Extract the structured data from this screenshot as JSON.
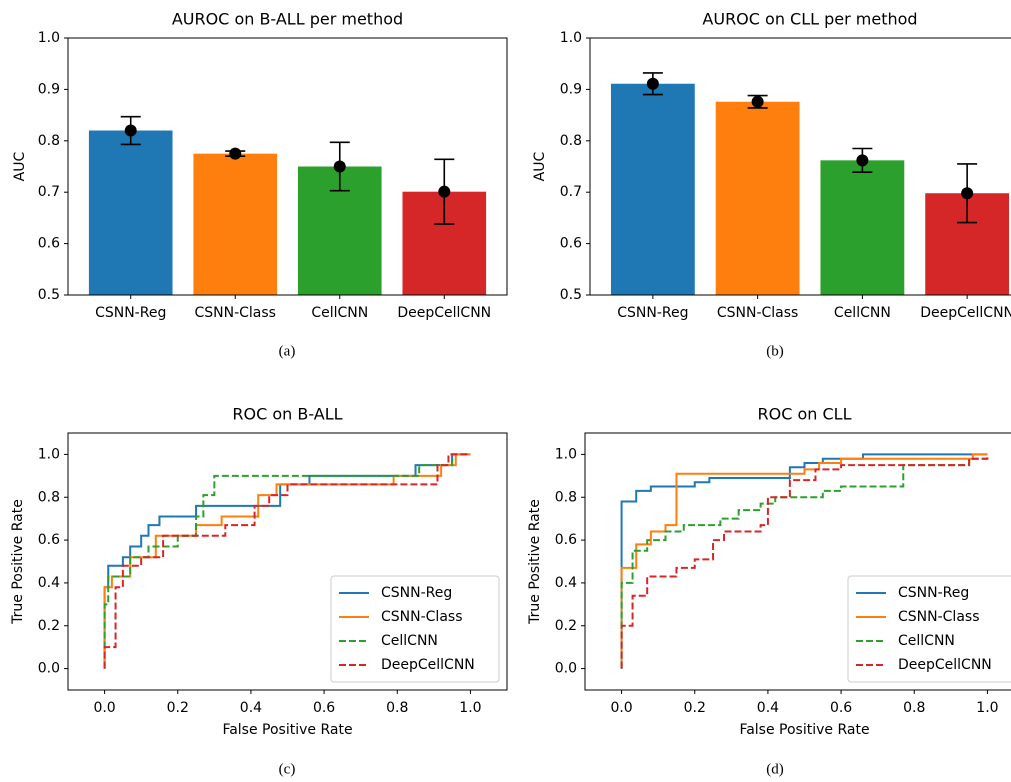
{
  "chart_data": [
    {
      "type": "bar",
      "title": "AUROC on B-ALL per method",
      "y_label": "AUC",
      "caption": "(a)",
      "categories": [
        "CSNN-Reg",
        "CSNN-Class",
        "CellCNN",
        "DeepCellCNN"
      ],
      "values": [
        0.82,
        0.775,
        0.75,
        0.701
      ],
      "errors": [
        0.027,
        0.005,
        0.047,
        0.063
      ],
      "colors": [
        "#1f77b4",
        "#ff7f0e",
        "#2ca02c",
        "#d62728"
      ],
      "ylim": [
        0.5,
        1.0
      ],
      "yticks": [
        0.5,
        0.6,
        0.7,
        0.8,
        0.9,
        {
          "value": 1.0,
          "label": "1.0"
        }
      ]
    },
    {
      "type": "bar",
      "title": "AUROC on CLL per method",
      "y_label": "AUC",
      "caption": "(b)",
      "categories": [
        "CSNN-Reg",
        "CSNN-Class",
        "CellCNN",
        "DeepCellCNN"
      ],
      "values": [
        0.911,
        0.876,
        0.762,
        0.698
      ],
      "errors": [
        0.021,
        0.012,
        0.023,
        0.057
      ],
      "colors": [
        "#1f77b4",
        "#ff7f0e",
        "#2ca02c",
        "#d62728"
      ],
      "ylim": [
        0.5,
        1.0
      ],
      "yticks": [
        0.5,
        0.6,
        0.7,
        0.8,
        0.9,
        {
          "value": 1.0,
          "label": "1.0"
        }
      ]
    },
    {
      "type": "line",
      "title": "ROC on B-ALL",
      "x_label": "False Positive Rate",
      "y_label": "True Positive Rate",
      "caption": "(c)",
      "legend": "lower right",
      "xlim": [
        -0.1,
        1.1
      ],
      "ylim": [
        -0.1,
        1.1
      ],
      "xticks": [
        {
          "value": 0.0,
          "label": "0.0"
        },
        0.2,
        0.4,
        0.6,
        0.8,
        {
          "value": 1.0,
          "label": "1.0"
        }
      ],
      "yticks": [
        {
          "value": 0.0,
          "label": "0.0"
        },
        0.2,
        0.4,
        0.6,
        0.8,
        {
          "value": 1.0,
          "label": "1.0"
        }
      ],
      "series": [
        {
          "name": "CSNN-Reg",
          "color": "#1f77b4",
          "linestyle": "solid",
          "x": [
            0,
            0,
            0.01,
            0.01,
            0.05,
            0.05,
            0.07,
            0.07,
            0.1,
            0.1,
            0.12,
            0.12,
            0.15,
            0.15,
            0.25,
            0.25,
            0.48,
            0.48,
            0.56,
            0.56,
            0.85,
            0.85,
            0.95,
            0.95,
            1
          ],
          "y": [
            0,
            0.38,
            0.38,
            0.48,
            0.48,
            0.52,
            0.52,
            0.57,
            0.57,
            0.62,
            0.62,
            0.67,
            0.67,
            0.71,
            0.71,
            0.76,
            0.76,
            0.86,
            0.86,
            0.9,
            0.9,
            0.95,
            0.95,
            1,
            1
          ]
        },
        {
          "name": "CSNN-Class",
          "color": "#ff7f0e",
          "linestyle": "solid",
          "x": [
            0,
            0,
            0.02,
            0.02,
            0.07,
            0.07,
            0.14,
            0.14,
            0.25,
            0.25,
            0.32,
            0.32,
            0.42,
            0.42,
            0.47,
            0.47,
            0.79,
            0.79,
            0.92,
            0.92,
            0.96,
            0.96,
            1
          ],
          "y": [
            0,
            0.38,
            0.38,
            0.43,
            0.43,
            0.52,
            0.52,
            0.62,
            0.62,
            0.67,
            0.67,
            0.71,
            0.71,
            0.81,
            0.81,
            0.86,
            0.86,
            0.9,
            0.9,
            0.95,
            0.95,
            1,
            1
          ]
        },
        {
          "name": "CellCNN",
          "color": "#2ca02c",
          "linestyle": "dashed",
          "x": [
            0,
            0,
            0.01,
            0.01,
            0.07,
            0.07,
            0.12,
            0.12,
            0.2,
            0.2,
            0.25,
            0.25,
            0.27,
            0.27,
            0.3,
            0.3,
            0.86,
            0.86,
            0.95,
            0.95,
            1
          ],
          "y": [
            0,
            0.3,
            0.3,
            0.43,
            0.43,
            0.52,
            0.52,
            0.57,
            0.57,
            0.62,
            0.62,
            0.71,
            0.71,
            0.81,
            0.81,
            0.9,
            0.9,
            0.95,
            0.95,
            1,
            1
          ]
        },
        {
          "name": "DeepCellCNN",
          "color": "#d62728",
          "linestyle": "dashed",
          "x": [
            0,
            0,
            0.03,
            0.03,
            0.05,
            0.05,
            0.1,
            0.1,
            0.16,
            0.16,
            0.33,
            0.33,
            0.41,
            0.41,
            0.45,
            0.45,
            0.5,
            0.5,
            0.91,
            0.91,
            0.94,
            0.94,
            1
          ],
          "y": [
            0,
            0.1,
            0.1,
            0.38,
            0.38,
            0.48,
            0.48,
            0.52,
            0.52,
            0.62,
            0.62,
            0.67,
            0.67,
            0.76,
            0.76,
            0.81,
            0.81,
            0.86,
            0.86,
            0.95,
            0.95,
            1,
            1
          ]
        }
      ]
    },
    {
      "type": "line",
      "title": "ROC on CLL",
      "x_label": "False Positive Rate",
      "y_label": "True Positive Rate",
      "caption": "(d)",
      "legend": "lower right",
      "xlim": [
        -0.1,
        1.1
      ],
      "ylim": [
        -0.1,
        1.1
      ],
      "xticks": [
        {
          "value": 0.0,
          "label": "0.0"
        },
        0.2,
        0.4,
        0.6,
        0.8,
        {
          "value": 1.0,
          "label": "1.0"
        }
      ],
      "yticks": [
        {
          "value": 0.0,
          "label": "0.0"
        },
        0.2,
        0.4,
        0.6,
        0.8,
        {
          "value": 1.0,
          "label": "1.0"
        }
      ],
      "series": [
        {
          "name": "CSNN-Reg",
          "color": "#1f77b4",
          "linestyle": "solid",
          "x": [
            0,
            0,
            0.04,
            0.04,
            0.08,
            0.08,
            0.2,
            0.2,
            0.24,
            0.24,
            0.46,
            0.46,
            0.5,
            0.5,
            0.55,
            0.55,
            0.66,
            0.66,
            1
          ],
          "y": [
            0,
            0.78,
            0.78,
            0.83,
            0.83,
            0.85,
            0.85,
            0.87,
            0.87,
            0.89,
            0.89,
            0.94,
            0.94,
            0.96,
            0.96,
            0.98,
            0.98,
            1,
            1
          ]
        },
        {
          "name": "CSNN-Class",
          "color": "#ff7f0e",
          "linestyle": "solid",
          "x": [
            0,
            0,
            0.04,
            0.04,
            0.08,
            0.08,
            0.12,
            0.12,
            0.15,
            0.15,
            0.5,
            0.5,
            0.54,
            0.54,
            0.6,
            0.6,
            0.96,
            0.96,
            1
          ],
          "y": [
            0,
            0.47,
            0.47,
            0.58,
            0.58,
            0.64,
            0.64,
            0.67,
            0.67,
            0.91,
            0.91,
            0.93,
            0.93,
            0.96,
            0.96,
            0.98,
            0.98,
            1,
            1
          ]
        },
        {
          "name": "CellCNN",
          "color": "#2ca02c",
          "linestyle": "dashed",
          "x": [
            0,
            0,
            0.03,
            0.03,
            0.07,
            0.07,
            0.12,
            0.12,
            0.17,
            0.17,
            0.27,
            0.27,
            0.32,
            0.32,
            0.38,
            0.38,
            0.42,
            0.42,
            0.55,
            0.55,
            0.6,
            0.6,
            0.77,
            0.77,
            0.95,
            0.95,
            1
          ],
          "y": [
            0,
            0.4,
            0.4,
            0.55,
            0.55,
            0.6,
            0.6,
            0.64,
            0.64,
            0.67,
            0.67,
            0.7,
            0.7,
            0.74,
            0.74,
            0.77,
            0.77,
            0.8,
            0.8,
            0.83,
            0.83,
            0.85,
            0.85,
            0.95,
            0.95,
            0.98,
            0.98
          ]
        },
        {
          "name": "DeepCellCNN",
          "color": "#d62728",
          "linestyle": "dashed",
          "x": [
            0,
            0,
            0.03,
            0.03,
            0.07,
            0.07,
            0.15,
            0.15,
            0.2,
            0.2,
            0.25,
            0.25,
            0.28,
            0.28,
            0.38,
            0.38,
            0.4,
            0.4,
            0.46,
            0.46,
            0.53,
            0.53,
            0.6,
            0.6,
            0.95,
            0.95,
            1,
            1
          ],
          "y": [
            0,
            0.2,
            0.2,
            0.34,
            0.34,
            0.43,
            0.43,
            0.47,
            0.47,
            0.51,
            0.51,
            0.6,
            0.6,
            0.64,
            0.64,
            0.67,
            0.67,
            0.8,
            0.8,
            0.88,
            0.88,
            0.93,
            0.93,
            0.95,
            0.95,
            0.98,
            0.98,
            1
          ]
        }
      ]
    }
  ]
}
